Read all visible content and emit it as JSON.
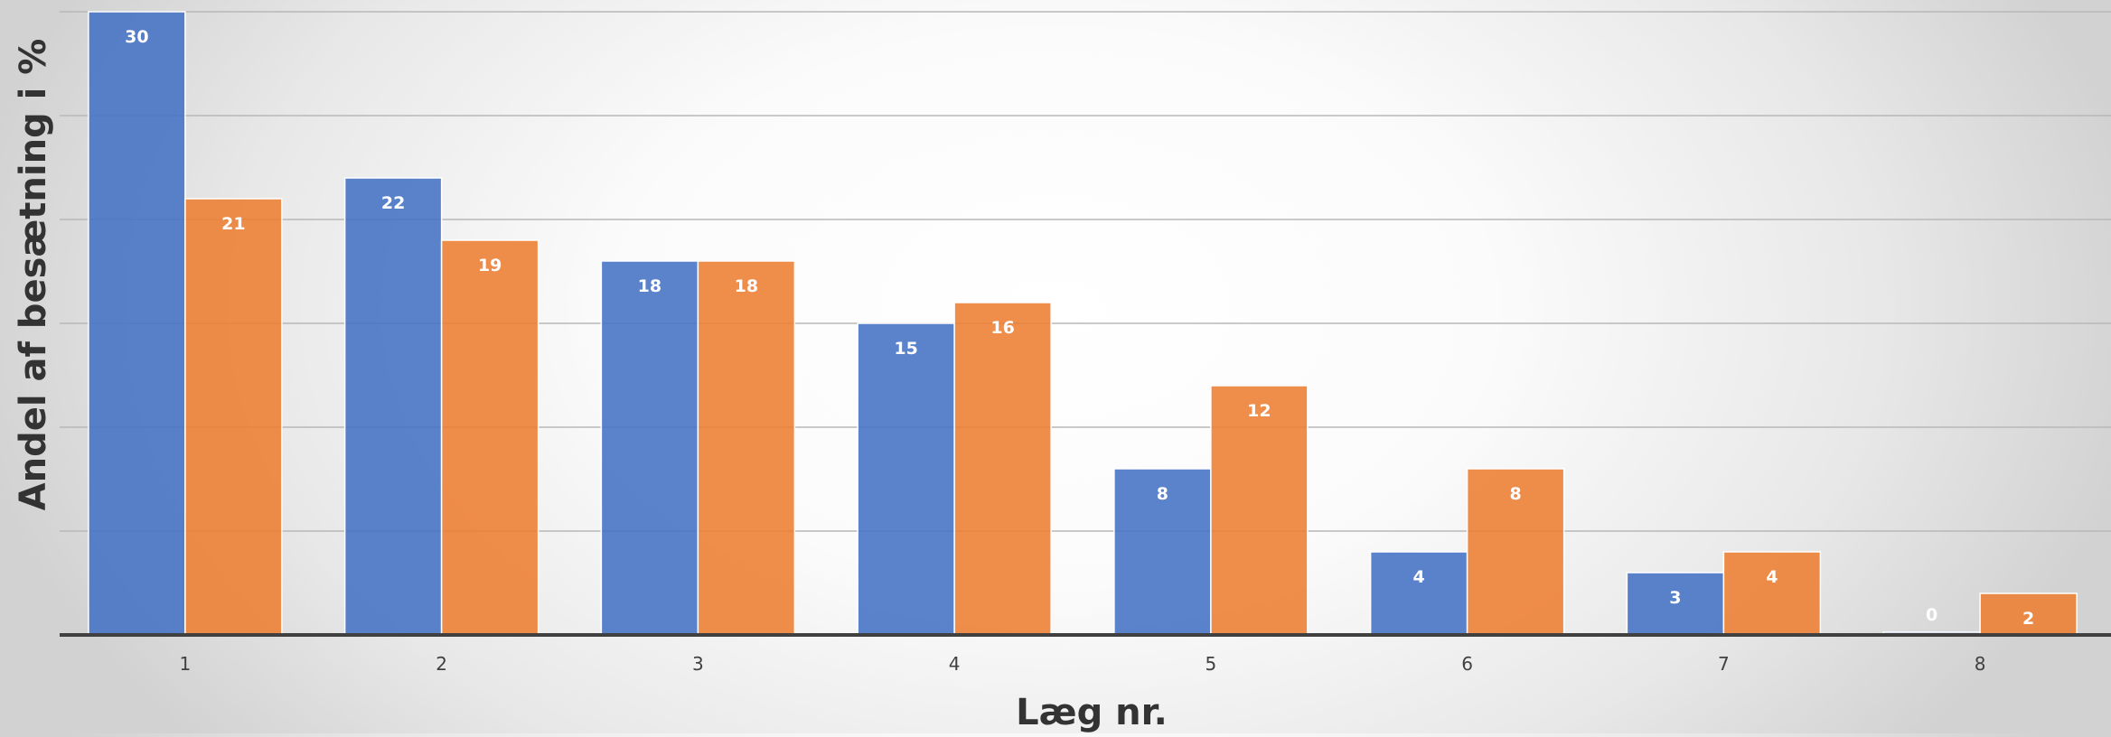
{
  "chart_data": {
    "type": "bar",
    "categories": [
      "1",
      "2",
      "3",
      "4",
      "5",
      "6",
      "7",
      "8"
    ],
    "series": [
      {
        "color": "#4472c4",
        "values": [
          30,
          22,
          18,
          15,
          8,
          4,
          3,
          0
        ]
      },
      {
        "color": "#ed7d31",
        "values": [
          21,
          19,
          18,
          16,
          12,
          8,
          4,
          2
        ]
      }
    ],
    "data_labels": [
      [
        "30",
        "22",
        "18",
        "15",
        "8",
        "4",
        "3",
        "0"
      ],
      [
        "21",
        "19",
        "18",
        "16",
        "12",
        "8",
        "4",
        "2"
      ]
    ],
    "xlabel": "Læg nr.",
    "ylabel": "Andel af besætning i %",
    "ylim": [
      0,
      30
    ],
    "y_gridline_step": 5,
    "grid": true,
    "legend": "none"
  }
}
